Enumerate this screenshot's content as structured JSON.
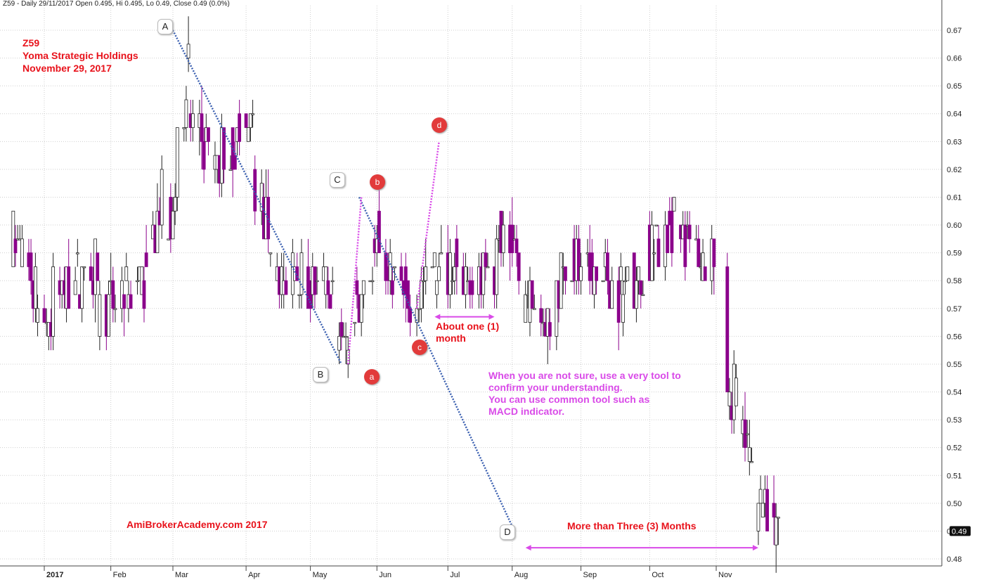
{
  "header": "Z59 - Daily 29/11/2017 Open 0.495, Hi 0.495, Lo 0.49, Close 0.49 (0.0%)",
  "title_lines": [
    "Z59",
    "Yoma Strategic Holdings",
    "November 29, 2017"
  ],
  "watermark": "AmiBrokerAcademy.com  2017",
  "notes": {
    "one_month_line1": "About one (1)",
    "one_month_line2": "month",
    "three_months": "More than Three (3) Months",
    "tip_lines": [
      "When you are not sure, use a very tool to",
      "confirm your understanding.",
      "You can use common tool such as",
      "MACD indicator."
    ]
  },
  "point_labels": {
    "A": "A",
    "B": "B",
    "C": "C",
    "D": "D",
    "a": "a",
    "b": "b",
    "c": "c",
    "d": "d"
  },
  "colors": {
    "down": "#8b008b",
    "up": "#ffffff",
    "outline": "#222222",
    "trend": "#3a5fb0",
    "wave": "#d94ae8",
    "grid": "#cfcfcf",
    "text_red": "#e8121b"
  },
  "chart_data": {
    "type": "candlestick",
    "ylim": [
      0.48,
      0.67
    ],
    "yticks": [
      0.48,
      0.49,
      0.5,
      0.51,
      0.52,
      0.53,
      0.54,
      0.55,
      0.56,
      0.57,
      0.58,
      0.59,
      0.6,
      0.61,
      0.62,
      0.63,
      0.64,
      0.65,
      0.66,
      0.67
    ],
    "xlabels": [
      "2017",
      "Feb",
      "Mar",
      "Apr",
      "May",
      "Jun",
      "Jul",
      "Aug",
      "Sep",
      "Oct",
      "Nov"
    ],
    "last_close_label": "0.49",
    "trend_points": [
      {
        "name": "A",
        "date": "2017-03-01",
        "price": 0.67
      },
      {
        "name": "B",
        "date": "2017-05-16",
        "price": 0.55
      },
      {
        "name": "C",
        "date": "2017-05-24",
        "price": 0.61
      },
      {
        "name": "D",
        "date": "2017-08-02",
        "price": 0.49
      }
    ],
    "wave_points": [
      {
        "name": "a",
        "date": "2017-05-19",
        "price": 0.55
      },
      {
        "name": "b",
        "date": "2017-05-25",
        "price": 0.61
      },
      {
        "name": "c",
        "date": "2017-06-19",
        "price": 0.57
      },
      {
        "name": "d",
        "date": "2017-06-29",
        "price": 0.63
      }
    ],
    "range_arrows": [
      {
        "from": "2017-06-27",
        "to": "2017-07-24",
        "price": 0.567,
        "label": "About one (1) month"
      },
      {
        "from": "2017-08-07",
        "to": "2017-11-20",
        "price": 0.484,
        "label": "More than Three (3) Months"
      }
    ],
    "segments": [
      {
        "start": "2016-12-19",
        "end": "2017-01-05",
        "from": 0.595,
        "to": 0.565
      },
      {
        "start": "2017-01-06",
        "end": "2017-01-26",
        "from": 0.575,
        "to": 0.585
      },
      {
        "start": "2017-01-27",
        "end": "2017-02-15",
        "from": 0.57,
        "to": 0.58
      },
      {
        "start": "2017-02-16",
        "end": "2017-02-24",
        "from": 0.58,
        "to": 0.61
      },
      {
        "start": "2017-02-27",
        "end": "2017-03-08",
        "from": 0.595,
        "to": 0.66
      },
      {
        "start": "2017-03-09",
        "end": "2017-03-22",
        "from": 0.64,
        "to": 0.615
      },
      {
        "start": "2017-03-23",
        "end": "2017-04-06",
        "from": 0.625,
        "to": 0.635
      },
      {
        "start": "2017-04-07",
        "end": "2017-04-21",
        "from": 0.615,
        "to": 0.575
      },
      {
        "start": "2017-04-24",
        "end": "2017-05-12",
        "from": 0.585,
        "to": 0.575
      },
      {
        "start": "2017-05-15",
        "end": "2017-05-19",
        "from": 0.56,
        "to": 0.555
      },
      {
        "start": "2017-05-22",
        "end": "2017-06-02",
        "from": 0.57,
        "to": 0.595
      },
      {
        "start": "2017-06-05",
        "end": "2017-06-16",
        "from": 0.585,
        "to": 0.575
      },
      {
        "start": "2017-06-19",
        "end": "2017-07-07",
        "from": 0.575,
        "to": 0.59
      },
      {
        "start": "2017-07-10",
        "end": "2017-07-24",
        "from": 0.58,
        "to": 0.585
      },
      {
        "start": "2017-07-25",
        "end": "2017-08-04",
        "from": 0.6,
        "to": 0.59
      },
      {
        "start": "2017-08-07",
        "end": "2017-08-18",
        "from": 0.575,
        "to": 0.565
      },
      {
        "start": "2017-08-21",
        "end": "2017-09-01",
        "from": 0.58,
        "to": 0.59
      },
      {
        "start": "2017-09-04",
        "end": "2017-09-15",
        "from": 0.585,
        "to": 0.58
      },
      {
        "start": "2017-09-18",
        "end": "2017-09-29",
        "from": 0.575,
        "to": 0.58
      },
      {
        "start": "2017-10-02",
        "end": "2017-10-13",
        "from": 0.59,
        "to": 0.6
      },
      {
        "start": "2017-10-16",
        "end": "2017-10-31",
        "from": 0.595,
        "to": 0.585
      },
      {
        "start": "2017-11-06",
        "end": "2017-11-14",
        "from": 0.545,
        "to": 0.53
      },
      {
        "start": "2017-11-15",
        "end": "2017-11-20",
        "from": 0.525,
        "to": 0.49
      },
      {
        "start": "2017-11-21",
        "end": "2017-11-29",
        "from": 0.505,
        "to": 0.49
      }
    ]
  }
}
